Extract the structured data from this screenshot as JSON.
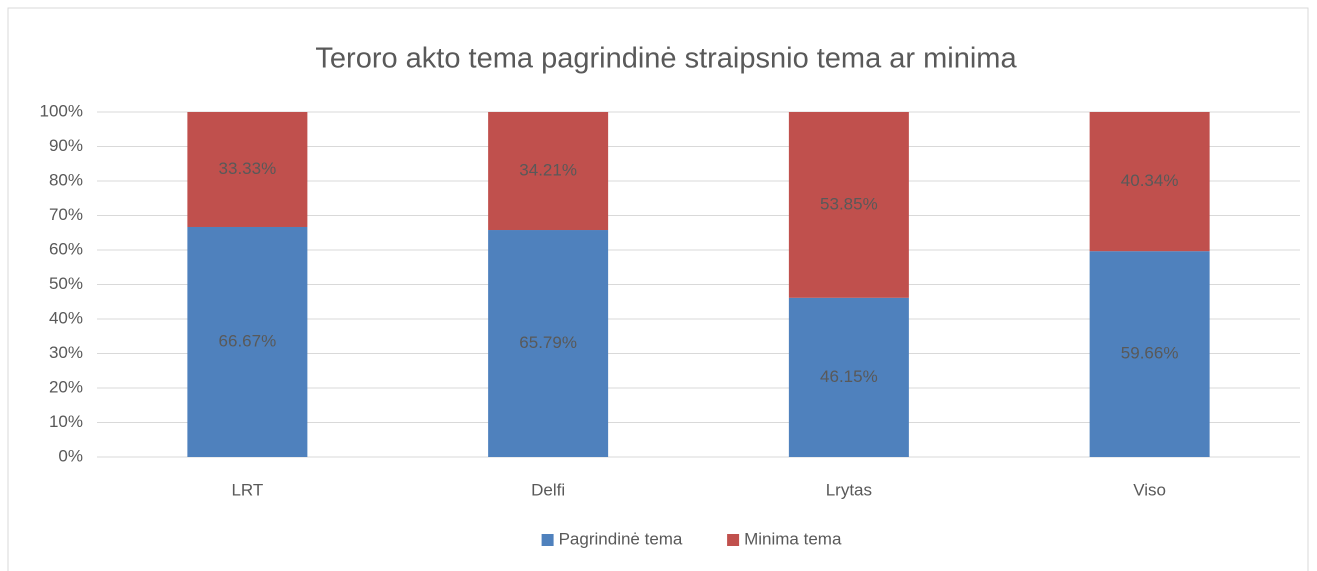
{
  "chart_data": {
    "type": "stacked_bar",
    "title": "Teroro akto tema pagrindinė straipsnio tema ar minima",
    "categories": [
      "LRT",
      "Delfi",
      "Lrytas",
      "Viso"
    ],
    "series": [
      {
        "name": "Pagrindinė tema",
        "color": "#4f81bd",
        "values": [
          66.67,
          65.79,
          46.15,
          59.66
        ],
        "value_labels": [
          "66.67%",
          "65.79%",
          "46.15%",
          "59.66%"
        ]
      },
      {
        "name": "Minima tema",
        "color": "#c0504d",
        "values": [
          33.33,
          34.21,
          53.85,
          40.34
        ],
        "value_labels": [
          "33.33%",
          "34.21%",
          "53.85%",
          "40.34%"
        ]
      }
    ],
    "ylim": [
      0,
      100
    ],
    "yticks": [
      {
        "value": 0,
        "label": "0%"
      },
      {
        "value": 10,
        "label": "10%"
      },
      {
        "value": 20,
        "label": "20%"
      },
      {
        "value": 30,
        "label": "30%"
      },
      {
        "value": 40,
        "label": "40%"
      },
      {
        "value": 50,
        "label": "50%"
      },
      {
        "value": 60,
        "label": "60%"
      },
      {
        "value": 70,
        "label": "70%"
      },
      {
        "value": 80,
        "label": "80%"
      },
      {
        "value": 90,
        "label": "90%"
      },
      {
        "value": 100,
        "label": "100%"
      }
    ],
    "grid": true,
    "legend": "bottom"
  }
}
